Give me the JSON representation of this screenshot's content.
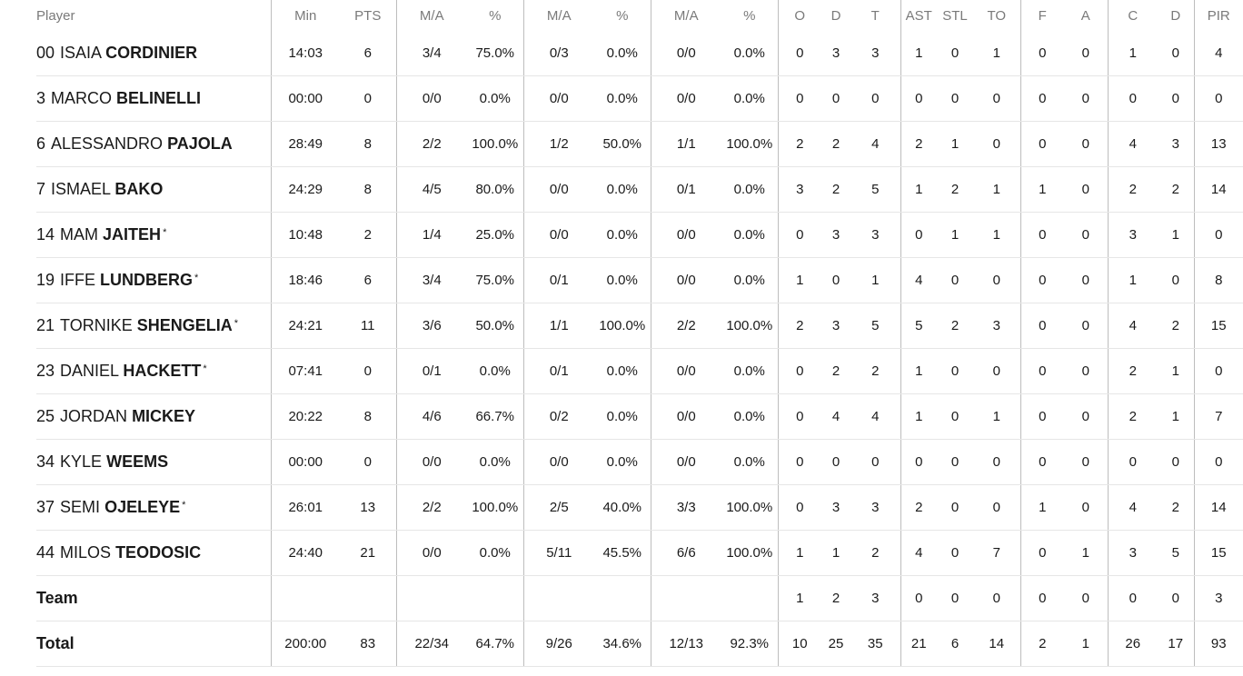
{
  "headers": [
    {
      "key": "player",
      "label": "Player"
    },
    {
      "key": "min",
      "label": "Min"
    },
    {
      "key": "pts",
      "label": "PTS"
    },
    {
      "key": "fg2",
      "label": "M/A"
    },
    {
      "key": "fg2p",
      "label": "%"
    },
    {
      "key": "fg3",
      "label": "M/A"
    },
    {
      "key": "fg3p",
      "label": "%"
    },
    {
      "key": "ft",
      "label": "M/A"
    },
    {
      "key": "ftp",
      "label": "%"
    },
    {
      "key": "o",
      "label": "O"
    },
    {
      "key": "d",
      "label": "D"
    },
    {
      "key": "t",
      "label": "T"
    },
    {
      "key": "ast",
      "label": "AST"
    },
    {
      "key": "stl",
      "label": "STL"
    },
    {
      "key": "to",
      "label": "TO"
    },
    {
      "key": "f",
      "label": "F"
    },
    {
      "key": "a",
      "label": "A"
    },
    {
      "key": "c",
      "label": "C"
    },
    {
      "key": "dr",
      "label": "D"
    },
    {
      "key": "pir",
      "label": "PIR"
    }
  ],
  "players": [
    {
      "num": "00",
      "first": "ISAIA",
      "last": "CORDINIER",
      "starter": false,
      "stats": [
        "14:03",
        "6",
        "3/4",
        "75.0%",
        "0/3",
        "0.0%",
        "0/0",
        "0.0%",
        "0",
        "3",
        "3",
        "1",
        "0",
        "1",
        "0",
        "0",
        "1",
        "0",
        "4"
      ]
    },
    {
      "num": "3",
      "first": "MARCO",
      "last": "BELINELLI",
      "starter": false,
      "stats": [
        "00:00",
        "0",
        "0/0",
        "0.0%",
        "0/0",
        "0.0%",
        "0/0",
        "0.0%",
        "0",
        "0",
        "0",
        "0",
        "0",
        "0",
        "0",
        "0",
        "0",
        "0",
        "0"
      ]
    },
    {
      "num": "6",
      "first": "ALESSANDRO",
      "last": "PAJOLA",
      "starter": false,
      "stats": [
        "28:49",
        "8",
        "2/2",
        "100.0%",
        "1/2",
        "50.0%",
        "1/1",
        "100.0%",
        "2",
        "2",
        "4",
        "2",
        "1",
        "0",
        "0",
        "0",
        "4",
        "3",
        "13"
      ]
    },
    {
      "num": "7",
      "first": "ISMAEL",
      "last": "BAKO",
      "starter": false,
      "stats": [
        "24:29",
        "8",
        "4/5",
        "80.0%",
        "0/0",
        "0.0%",
        "0/1",
        "0.0%",
        "3",
        "2",
        "5",
        "1",
        "2",
        "1",
        "1",
        "0",
        "2",
        "2",
        "14"
      ]
    },
    {
      "num": "14",
      "first": "MAM",
      "last": "JAITEH",
      "starter": true,
      "stats": [
        "10:48",
        "2",
        "1/4",
        "25.0%",
        "0/0",
        "0.0%",
        "0/0",
        "0.0%",
        "0",
        "3",
        "3",
        "0",
        "1",
        "1",
        "0",
        "0",
        "3",
        "1",
        "0"
      ]
    },
    {
      "num": "19",
      "first": "IFFE",
      "last": "LUNDBERG",
      "starter": true,
      "stats": [
        "18:46",
        "6",
        "3/4",
        "75.0%",
        "0/1",
        "0.0%",
        "0/0",
        "0.0%",
        "1",
        "0",
        "1",
        "4",
        "0",
        "0",
        "0",
        "0",
        "1",
        "0",
        "8"
      ]
    },
    {
      "num": "21",
      "first": "TORNIKE",
      "last": "SHENGELIA",
      "starter": true,
      "stats": [
        "24:21",
        "11",
        "3/6",
        "50.0%",
        "1/1",
        "100.0%",
        "2/2",
        "100.0%",
        "2",
        "3",
        "5",
        "5",
        "2",
        "3",
        "0",
        "0",
        "4",
        "2",
        "15"
      ]
    },
    {
      "num": "23",
      "first": "DANIEL",
      "last": "HACKETT",
      "starter": true,
      "stats": [
        "07:41",
        "0",
        "0/1",
        "0.0%",
        "0/1",
        "0.0%",
        "0/0",
        "0.0%",
        "0",
        "2",
        "2",
        "1",
        "0",
        "0",
        "0",
        "0",
        "2",
        "1",
        "0"
      ]
    },
    {
      "num": "25",
      "first": "JORDAN",
      "last": "MICKEY",
      "starter": false,
      "stats": [
        "20:22",
        "8",
        "4/6",
        "66.7%",
        "0/2",
        "0.0%",
        "0/0",
        "0.0%",
        "0",
        "4",
        "4",
        "1",
        "0",
        "1",
        "0",
        "0",
        "2",
        "1",
        "7"
      ]
    },
    {
      "num": "34",
      "first": "KYLE",
      "last": "WEEMS",
      "starter": false,
      "stats": [
        "00:00",
        "0",
        "0/0",
        "0.0%",
        "0/0",
        "0.0%",
        "0/0",
        "0.0%",
        "0",
        "0",
        "0",
        "0",
        "0",
        "0",
        "0",
        "0",
        "0",
        "0",
        "0"
      ]
    },
    {
      "num": "37",
      "first": "SEMI",
      "last": "OJELEYE",
      "starter": true,
      "stats": [
        "26:01",
        "13",
        "2/2",
        "100.0%",
        "2/5",
        "40.0%",
        "3/3",
        "100.0%",
        "0",
        "3",
        "3",
        "2",
        "0",
        "0",
        "1",
        "0",
        "4",
        "2",
        "14"
      ]
    },
    {
      "num": "44",
      "first": "MILOS",
      "last": "TEODOSIC",
      "starter": false,
      "stats": [
        "24:40",
        "21",
        "0/0",
        "0.0%",
        "5/11",
        "45.5%",
        "6/6",
        "100.0%",
        "1",
        "1",
        "2",
        "4",
        "0",
        "7",
        "0",
        "1",
        "3",
        "5",
        "15"
      ]
    }
  ],
  "team": {
    "label": "Team",
    "stats": [
      "",
      "",
      "",
      "",
      "",
      "",
      "",
      "",
      "1",
      "2",
      "3",
      "0",
      "0",
      "0",
      "0",
      "0",
      "0",
      "0",
      "3"
    ]
  },
  "total": {
    "label": "Total",
    "stats": [
      "200:00",
      "83",
      "22/34",
      "64.7%",
      "9/26",
      "34.6%",
      "12/13",
      "92.3%",
      "10",
      "25",
      "35",
      "21",
      "6",
      "14",
      "2",
      "1",
      "26",
      "17",
      "93"
    ]
  },
  "starter_mark": "*"
}
